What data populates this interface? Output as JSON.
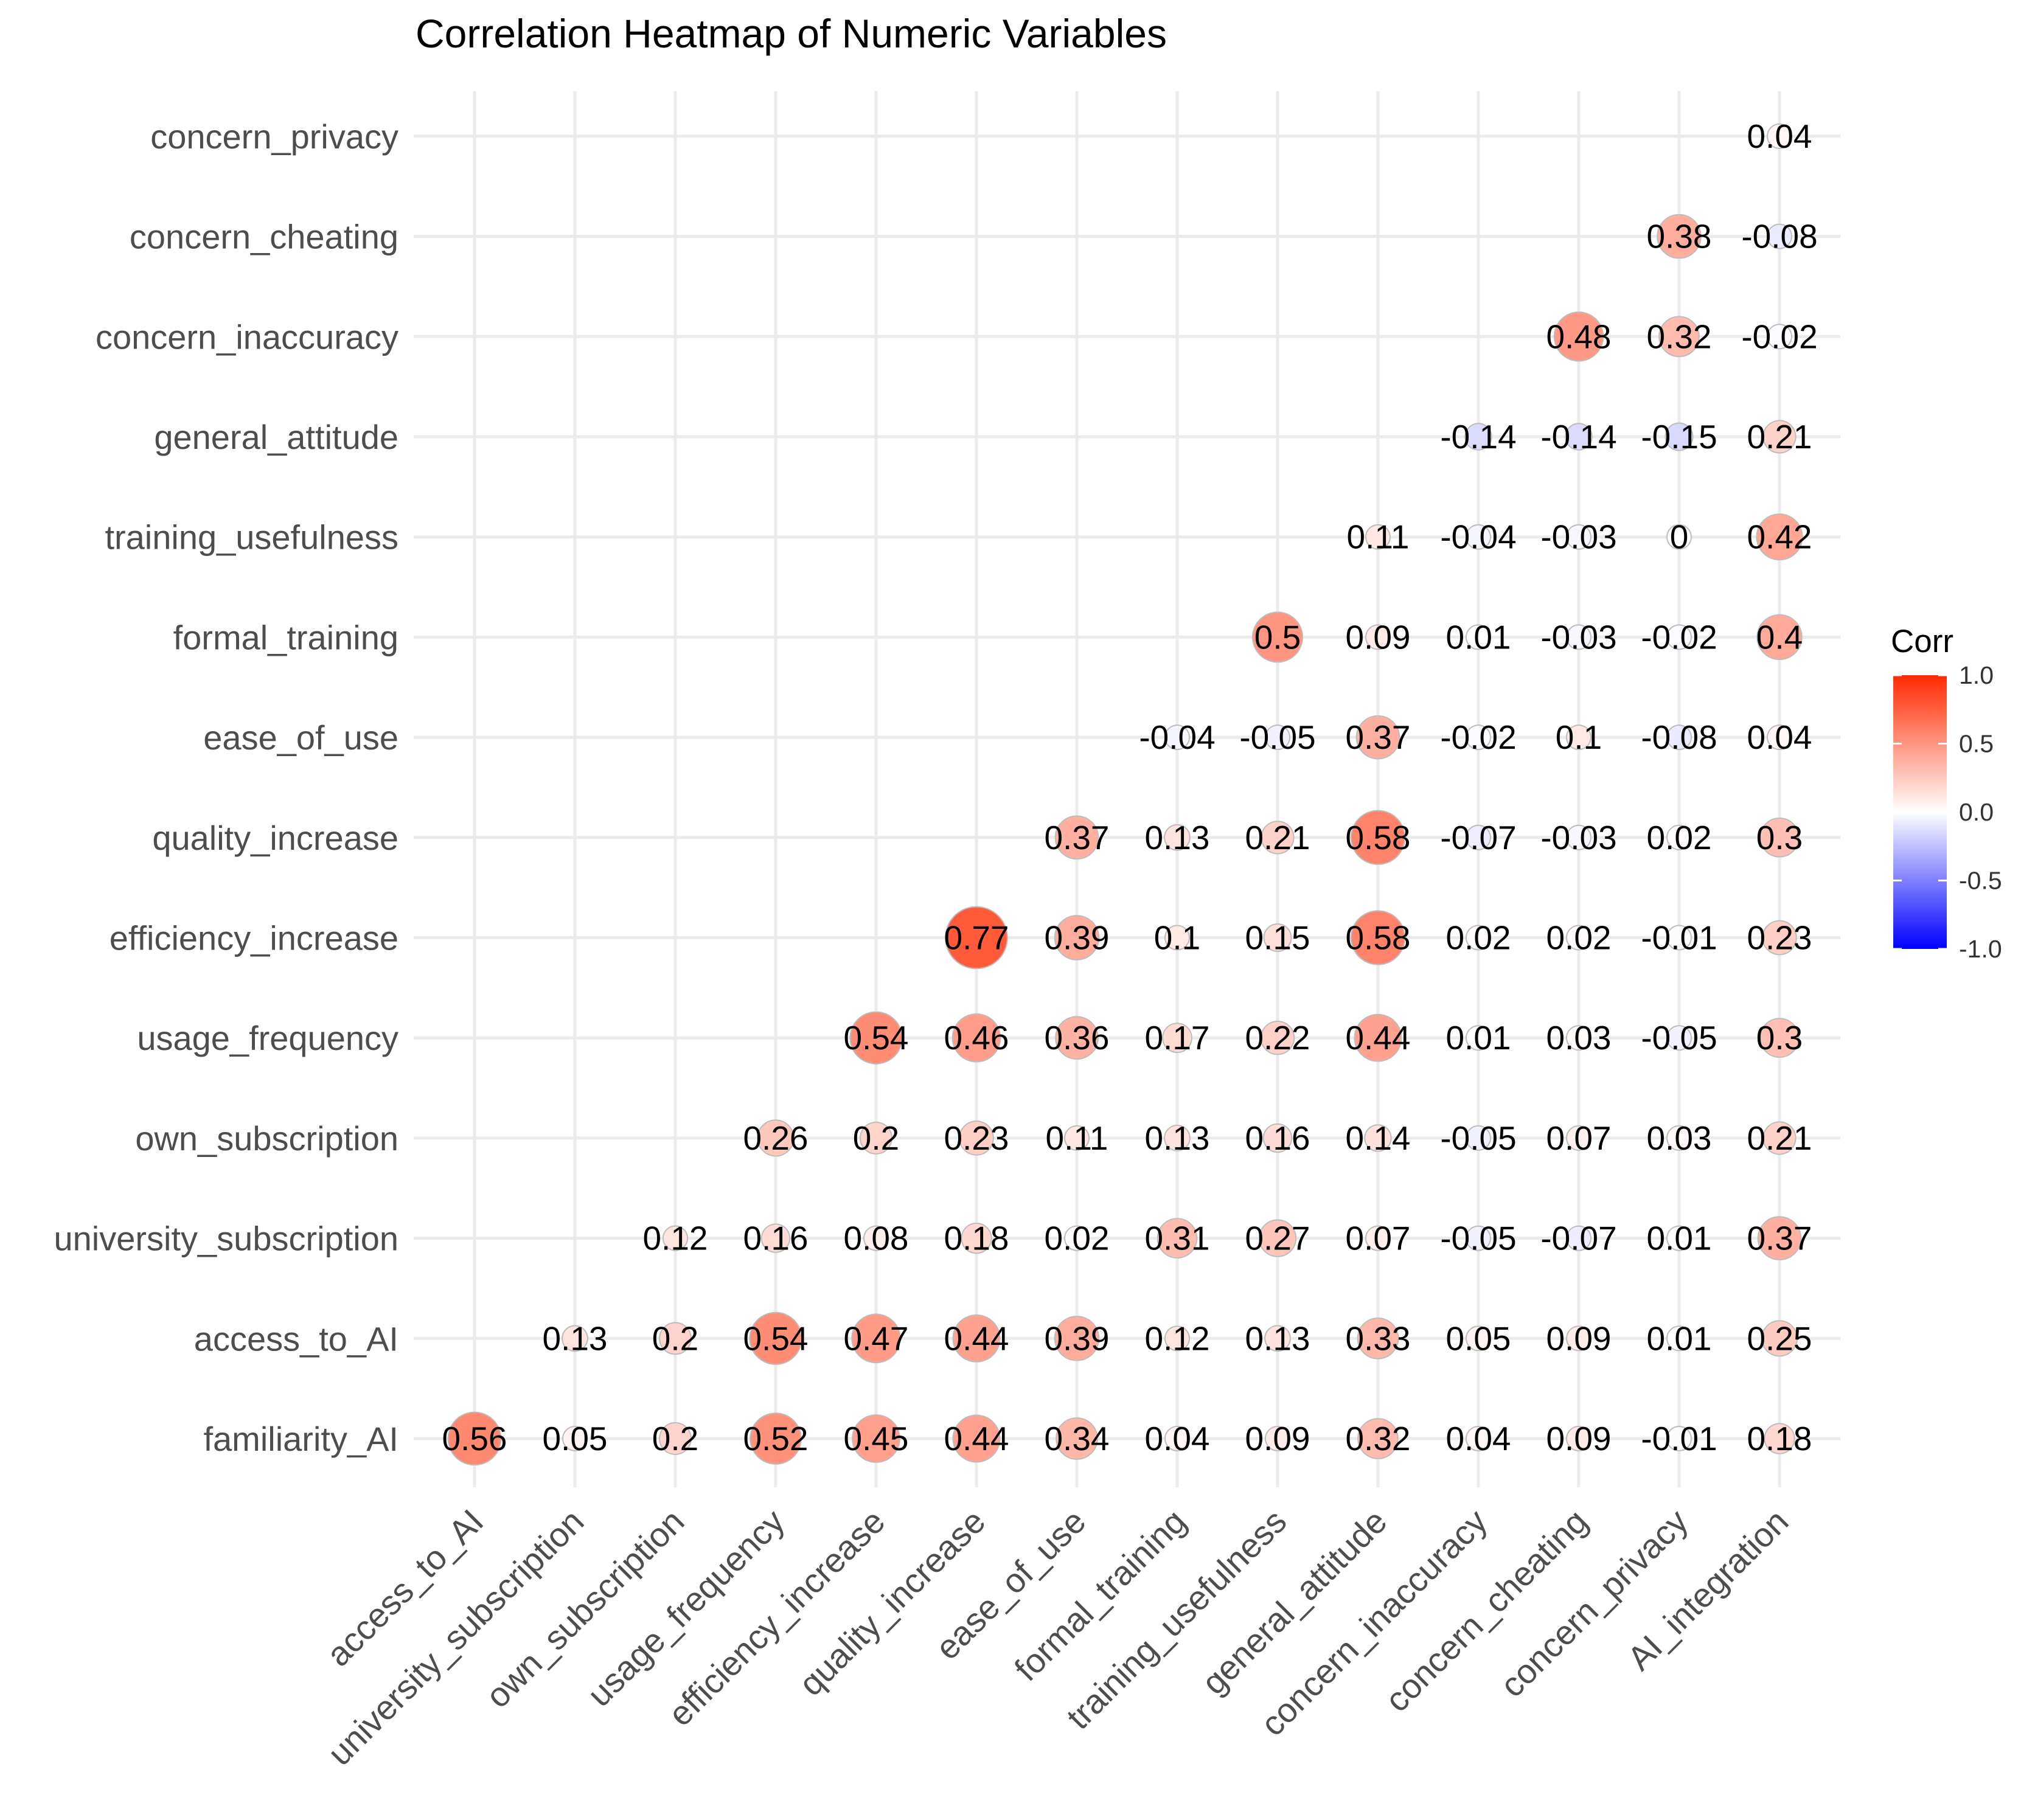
{
  "chart_data": {
    "type": "heatmap",
    "title": "Correlation Heatmap of Numeric Variables",
    "x_categories": [
      "access_to_AI",
      "university_subscription",
      "own_subscription",
      "usage_frequency",
      "efficiency_increase",
      "quality_increase",
      "ease_of_use",
      "formal_training",
      "training_usefulness",
      "general_attitude",
      "concern_inaccuracy",
      "concern_cheating",
      "concern_privacy",
      "AI_integration"
    ],
    "y_categories": [
      "familiarity_AI",
      "access_to_AI",
      "university_subscription",
      "own_subscription",
      "usage_frequency",
      "efficiency_increase",
      "quality_increase",
      "ease_of_use",
      "formal_training",
      "training_usefulness",
      "general_attitude",
      "concern_inaccuracy",
      "concern_cheating",
      "concern_privacy"
    ],
    "rows": [
      {
        "y": "familiarity_AI",
        "values": [
          0.56,
          0.05,
          0.2,
          0.52,
          0.45,
          0.44,
          0.34,
          0.04,
          0.09,
          0.32,
          0.04,
          0.09,
          -0.01,
          0.18
        ]
      },
      {
        "y": "access_to_AI",
        "values": [
          null,
          0.13,
          0.2,
          0.54,
          0.47,
          0.44,
          0.39,
          0.12,
          0.13,
          0.33,
          0.05,
          0.09,
          0.01,
          0.25
        ]
      },
      {
        "y": "university_subscription",
        "values": [
          null,
          null,
          0.12,
          0.16,
          0.08,
          0.18,
          0.02,
          0.31,
          0.27,
          0.07,
          -0.05,
          -0.07,
          0.01,
          0.37
        ]
      },
      {
        "y": "own_subscription",
        "values": [
          null,
          null,
          null,
          0.26,
          0.2,
          0.23,
          0.11,
          0.13,
          0.16,
          0.14,
          -0.05,
          0.07,
          0.03,
          0.21
        ]
      },
      {
        "y": "usage_frequency",
        "values": [
          null,
          null,
          null,
          null,
          0.54,
          0.46,
          0.36,
          0.17,
          0.22,
          0.44,
          0.01,
          0.03,
          -0.05,
          0.3
        ]
      },
      {
        "y": "efficiency_increase",
        "values": [
          null,
          null,
          null,
          null,
          null,
          0.77,
          0.39,
          0.1,
          0.15,
          0.58,
          0.02,
          0.02,
          -0.01,
          0.23
        ]
      },
      {
        "y": "quality_increase",
        "values": [
          null,
          null,
          null,
          null,
          null,
          null,
          0.37,
          0.13,
          0.21,
          0.58,
          -0.07,
          -0.03,
          0.02,
          0.3
        ]
      },
      {
        "y": "ease_of_use",
        "values": [
          null,
          null,
          null,
          null,
          null,
          null,
          null,
          -0.04,
          -0.05,
          0.37,
          -0.02,
          0.1,
          -0.08,
          0.04
        ]
      },
      {
        "y": "formal_training",
        "values": [
          null,
          null,
          null,
          null,
          null,
          null,
          null,
          null,
          0.5,
          0.09,
          0.01,
          -0.03,
          -0.02,
          0.4
        ]
      },
      {
        "y": "training_usefulness",
        "values": [
          null,
          null,
          null,
          null,
          null,
          null,
          null,
          null,
          null,
          0.11,
          -0.04,
          -0.03,
          0,
          0.42
        ]
      },
      {
        "y": "general_attitude",
        "values": [
          null,
          null,
          null,
          null,
          null,
          null,
          null,
          null,
          null,
          null,
          -0.14,
          -0.14,
          -0.15,
          0.21
        ]
      },
      {
        "y": "concern_inaccuracy",
        "values": [
          null,
          null,
          null,
          null,
          null,
          null,
          null,
          null,
          null,
          null,
          null,
          0.48,
          0.32,
          -0.02
        ]
      },
      {
        "y": "concern_cheating",
        "values": [
          null,
          null,
          null,
          null,
          null,
          null,
          null,
          null,
          null,
          null,
          null,
          null,
          0.38,
          -0.08
        ]
      },
      {
        "y": "concern_privacy",
        "values": [
          null,
          null,
          null,
          null,
          null,
          null,
          null,
          null,
          null,
          null,
          null,
          null,
          null,
          0.04
        ]
      }
    ],
    "legend": {
      "title": "Corr",
      "min": -1.0,
      "max": 1.0,
      "ticks": [
        "1.0",
        "0.5",
        "0.0",
        "-0.5",
        "-1.0"
      ],
      "tick_values": [
        1.0,
        0.5,
        0.0,
        -0.5,
        -1.0
      ],
      "low_color": "#0000ff",
      "mid_color": "#ffffff",
      "high_color": "#ff2a00",
      "placement": "right"
    },
    "grid": true,
    "marker": "circle sized by |corr|, filled by gradient"
  }
}
